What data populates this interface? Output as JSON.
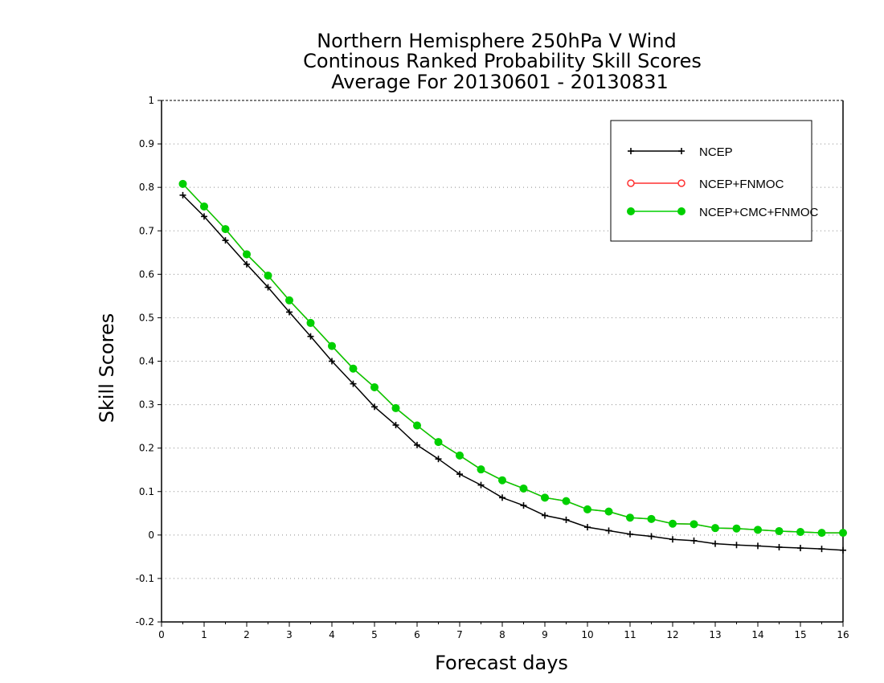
{
  "chart_data": {
    "type": "line",
    "title": [
      "Northern Hemisphere 250hPa V Wind",
      "Continous Ranked Probability Skill Scores",
      "Average For 20130601 - 20130831"
    ],
    "xlabel": "Forecast days",
    "ylabel": "Skill Scores",
    "xlim": [
      0,
      16
    ],
    "ylim": [
      -0.2,
      1
    ],
    "xticks": [
      0,
      1,
      2,
      3,
      4,
      5,
      6,
      7,
      8,
      9,
      10,
      11,
      12,
      13,
      14,
      15,
      16
    ],
    "xtick_labels": [
      "0",
      "1",
      "2",
      "3",
      "4",
      "5",
      "6",
      "7",
      "8",
      "9",
      "10",
      "11",
      "12",
      "13",
      "14",
      "15",
      "16"
    ],
    "yticks": [
      -0.2,
      -0.1,
      0,
      0.1,
      0.2,
      0.3,
      0.4,
      0.5,
      0.6,
      0.7,
      0.8,
      0.9,
      1
    ],
    "ytick_labels": [
      "-0.2",
      "-0.1",
      "0",
      "0.1",
      "0.2",
      "0.3",
      "0.4",
      "0.5",
      "0.6",
      "0.7",
      "0.8",
      "0.9",
      "1"
    ],
    "grid": "horizontal dotted",
    "legend_position": "top-right",
    "x": [
      0.5,
      1,
      1.5,
      2,
      2.5,
      3,
      3.5,
      4,
      4.5,
      5,
      5.5,
      6,
      6.5,
      7,
      7.5,
      8,
      8.5,
      9,
      9.5,
      10,
      10.5,
      11,
      11.5,
      12,
      12.5,
      13,
      13.5,
      14,
      14.5,
      15,
      15.5,
      16
    ],
    "series": [
      {
        "name": "NCEP",
        "color": "#000000",
        "marker": "plus",
        "values": [
          0.782,
          0.733,
          0.678,
          0.623,
          0.57,
          0.513,
          0.457,
          0.4,
          0.348,
          0.295,
          0.253,
          0.207,
          0.175,
          0.14,
          0.115,
          0.086,
          0.068,
          0.045,
          0.035,
          0.018,
          0.01,
          0.002,
          -0.003,
          -0.01,
          -0.013,
          -0.02,
          -0.023,
          -0.025,
          -0.028,
          -0.03,
          -0.032,
          -0.035
        ]
      },
      {
        "name": "NCEP+FNMOC",
        "color": "#ff3030",
        "marker": "open-circle",
        "values": [
          0.808,
          0.756,
          0.704,
          0.646,
          0.597,
          0.54,
          0.488,
          0.435,
          0.383,
          0.34,
          0.292,
          0.252,
          0.214,
          0.183,
          0.151,
          0.126,
          0.107,
          0.086,
          0.078,
          0.059,
          0.054,
          0.04,
          0.037,
          0.026,
          0.025,
          0.016,
          0.015,
          0.012,
          0.009,
          0.007,
          0.005,
          0.005
        ]
      },
      {
        "name": "NCEP+CMC+FNMOC",
        "color": "#00d000",
        "marker": "filled-circle",
        "values": [
          0.808,
          0.756,
          0.704,
          0.646,
          0.597,
          0.54,
          0.488,
          0.435,
          0.383,
          0.34,
          0.292,
          0.252,
          0.214,
          0.183,
          0.151,
          0.126,
          0.107,
          0.086,
          0.078,
          0.059,
          0.054,
          0.04,
          0.037,
          0.026,
          0.025,
          0.016,
          0.015,
          0.012,
          0.009,
          0.007,
          0.005,
          0.005
        ]
      }
    ]
  }
}
